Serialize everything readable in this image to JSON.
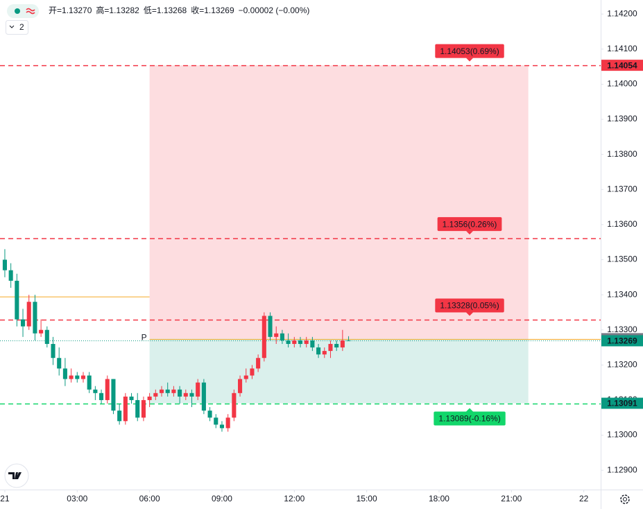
{
  "chart_data": {
    "type": "candlestick",
    "legend": {
      "items": [
        {
          "label": "开=",
          "value": "1.13270"
        },
        {
          "label": "高=",
          "value": "1.13282"
        },
        {
          "label": "低=",
          "value": "1.13268"
        },
        {
          "label": "收=",
          "value": "1.13269"
        }
      ],
      "change": "−0.00002 (−0.00%)",
      "indicator_count": "2"
    },
    "up_color": "#f23645",
    "down_color": "#089981",
    "x": [
      0,
      0.25,
      0.5,
      0.75,
      1,
      1.25,
      1.5,
      1.75,
      2,
      2.25,
      2.5,
      2.75,
      3,
      3.25,
      3.5,
      3.75,
      4,
      4.25,
      4.5,
      4.75,
      5,
      5.25,
      5.5,
      5.75,
      6,
      6.25,
      6.5,
      6.75,
      7,
      7.25,
      7.5,
      7.75,
      8,
      8.25,
      8.5,
      8.75,
      9,
      9.25,
      9.5,
      9.75,
      10,
      10.25,
      10.5,
      10.75,
      11,
      11.25,
      11.5,
      11.75,
      12,
      12.25,
      12.5,
      12.75,
      13,
      13.25,
      13.5,
      13.75,
      14,
      14.25
    ],
    "open": [
      1.135,
      1.1347,
      1.1344,
      1.1333,
      1.1331,
      1.1338,
      1.1329,
      1.133,
      1.1326,
      1.1322,
      1.1319,
      1.1316,
      1.1317,
      1.1316,
      1.1317,
      1.1313,
      1.1312,
      1.131,
      1.1316,
      1.1307,
      1.1304,
      1.1311,
      1.131,
      1.1305,
      1.131,
      1.1311,
      1.1312,
      1.1313,
      1.1312,
      1.1313,
      1.1311,
      1.1312,
      1.1311,
      1.1315,
      1.1307,
      1.1305,
      1.1303,
      1.1302,
      1.1305,
      1.1312,
      1.1316,
      1.1317,
      1.1319,
      1.1322,
      1.1334,
      1.1328,
      1.1329,
      1.1327,
      1.1326,
      1.1327,
      1.1326,
      1.1327,
      1.1325,
      1.1323,
      1.1324,
      1.1326,
      1.1325,
      1.1327
    ],
    "high": [
      1.1353,
      1.1349,
      1.1346,
      1.1336,
      1.134,
      1.134,
      1.1333,
      1.1331,
      1.1328,
      1.1325,
      1.1322,
      1.1319,
      1.1318,
      1.1318,
      1.1318,
      1.1314,
      1.1313,
      1.1317,
      1.1316,
      1.1309,
      1.1312,
      1.1312,
      1.1312,
      1.1311,
      1.1312,
      1.1313,
      1.1314,
      1.1315,
      1.1314,
      1.1314,
      1.1313,
      1.1313,
      1.1316,
      1.1316,
      1.1308,
      1.1306,
      1.1304,
      1.1306,
      1.1313,
      1.1317,
      1.1319,
      1.132,
      1.1323,
      1.1335,
      1.1335,
      1.1331,
      1.133,
      1.1329,
      1.1328,
      1.1328,
      1.1328,
      1.1328,
      1.1326,
      1.1325,
      1.1327,
      1.1327,
      1.133,
      1.13282
    ],
    "low": [
      1.1345,
      1.1342,
      1.1331,
      1.1328,
      1.133,
      1.1327,
      1.1328,
      1.1325,
      1.132,
      1.1317,
      1.1314,
      1.1315,
      1.1315,
      1.1315,
      1.1312,
      1.131,
      1.1309,
      1.1309,
      1.1306,
      1.1303,
      1.1303,
      1.1309,
      1.1304,
      1.1304,
      1.1308,
      1.131,
      1.1311,
      1.1311,
      1.1311,
      1.1309,
      1.131,
      1.1308,
      1.131,
      1.1306,
      1.1304,
      1.1302,
      1.1301,
      1.1301,
      1.1304,
      1.1311,
      1.1315,
      1.1316,
      1.1318,
      1.1321,
      1.1327,
      1.1326,
      1.1326,
      1.1325,
      1.1325,
      1.1325,
      1.1325,
      1.1324,
      1.1322,
      1.1322,
      1.1322,
      1.1324,
      1.1324,
      1.13268
    ],
    "close": [
      1.1347,
      1.1344,
      1.1333,
      1.1331,
      1.1338,
      1.1329,
      1.133,
      1.1326,
      1.1322,
      1.1319,
      1.1316,
      1.1317,
      1.1316,
      1.1317,
      1.1313,
      1.1312,
      1.131,
      1.1316,
      1.1307,
      1.1304,
      1.1311,
      1.131,
      1.1305,
      1.131,
      1.1311,
      1.1312,
      1.1313,
      1.1312,
      1.1313,
      1.1311,
      1.1312,
      1.1311,
      1.1315,
      1.1307,
      1.1305,
      1.1303,
      1.1302,
      1.1305,
      1.1312,
      1.1316,
      1.1317,
      1.1319,
      1.1322,
      1.1334,
      1.1328,
      1.1329,
      1.1327,
      1.1326,
      1.1327,
      1.1326,
      1.1327,
      1.1325,
      1.1323,
      1.1324,
      1.1326,
      1.1325,
      1.1327,
      1.13269
    ],
    "xlim": [
      -0.2,
      24.7
    ],
    "xticks": [
      {
        "value": 0,
        "label": "21"
      },
      {
        "value": 3,
        "label": "03:00"
      },
      {
        "value": 6,
        "label": "06:00"
      },
      {
        "value": 9,
        "label": "09:00"
      },
      {
        "value": 12,
        "label": "12:00"
      },
      {
        "value": 15,
        "label": "15:00"
      },
      {
        "value": 18,
        "label": "18:00"
      },
      {
        "value": 21,
        "label": "21:00"
      },
      {
        "value": 24,
        "label": "22"
      }
    ],
    "ylim": [
      1.12845,
      1.1424
    ],
    "yticks": [
      {
        "value": 1.142,
        "label": "1.14200"
      },
      {
        "value": 1.141,
        "label": "1.14100"
      },
      {
        "value": 1.14,
        "label": "1.14000"
      },
      {
        "value": 1.139,
        "label": "1.13900"
      },
      {
        "value": 1.138,
        "label": "1.13800"
      },
      {
        "value": 1.137,
        "label": "1.13700"
      },
      {
        "value": 1.136,
        "label": "1.13600"
      },
      {
        "value": 1.135,
        "label": "1.13500"
      },
      {
        "value": 1.134,
        "label": "1.13400"
      },
      {
        "value": 1.133,
        "label": "1.13300"
      },
      {
        "value": 1.132,
        "label": "1.13200"
      },
      {
        "value": 1.131,
        "label": "1.13100"
      },
      {
        "value": 1.13,
        "label": "1.13000"
      },
      {
        "value": 1.129,
        "label": "1.12900"
      }
    ],
    "position": {
      "x": [
        6,
        21.7
      ],
      "target": 1.14054,
      "entry": 1.13275,
      "stop": 1.13091
    },
    "levels": [
      {
        "value": 1.14053,
        "label": "1.14053(0.69%)",
        "color": "#f23645"
      },
      {
        "value": 1.1356,
        "label": "1.1356(0.26%)",
        "color": "#f23645"
      },
      {
        "value": 1.13328,
        "label": "1.13328(0.05%)",
        "color": "#f23645"
      },
      {
        "value": 1.13089,
        "label": "1.13089(-0.16%)",
        "color": "#12d66a"
      }
    ],
    "axis_labels": [
      {
        "value": 1.14054,
        "color": "#f23645"
      },
      {
        "value": 1.13275,
        "color": "#787b86"
      },
      {
        "value": 1.13269,
        "color": "#089981"
      },
      {
        "value": 1.13091,
        "color": "#089981"
      }
    ],
    "pivot_lines": [
      {
        "value": 1.13394,
        "x": [
          -0.2,
          6
        ]
      },
      {
        "value": 1.13273,
        "x": [
          6,
          24.7
        ],
        "label": "P"
      }
    ],
    "pivot_color": "#f5a623",
    "last_price": 1.13269
  }
}
